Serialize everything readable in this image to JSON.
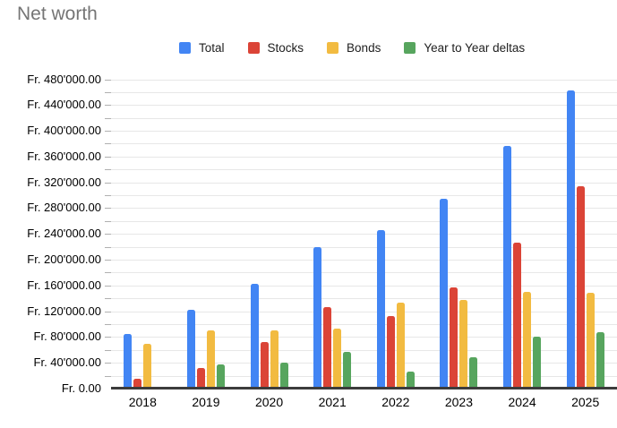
{
  "chart_data": {
    "type": "bar",
    "title": "Net worth",
    "categories": [
      "2018",
      "2019",
      "2020",
      "2021",
      "2022",
      "2023",
      "2024",
      "2025"
    ],
    "series": [
      {
        "name": "Total",
        "color": "#4285F4",
        "values": [
          85000,
          122000,
          162000,
          219000,
          246000,
          295000,
          376000,
          463000
        ]
      },
      {
        "name": "Stocks",
        "color": "#DB4437",
        "values": [
          15000,
          32000,
          72000,
          126000,
          112000,
          157000,
          226000,
          314000
        ]
      },
      {
        "name": "Bonds",
        "color": "#F2BB41",
        "values": [
          70000,
          90000,
          90000,
          93000,
          134000,
          138000,
          150000,
          149000
        ]
      },
      {
        "name": "Year to Year deltas",
        "color": "#57A55E",
        "values": [
          null,
          37000,
          40000,
          57000,
          27000,
          49000,
          81000,
          87000
        ]
      }
    ],
    "ylim": [
      0,
      480000
    ],
    "y_major_step": 40000,
    "y_minor_step": 20000,
    "y_tick_labels": [
      "Fr. 0.00",
      "Fr. 40'000.00",
      "Fr. 80'000.00",
      "Fr. 120'000.00",
      "Fr. 160'000.00",
      "Fr. 200'000.00",
      "Fr. 240'000.00",
      "Fr. 280'000.00",
      "Fr. 320'000.00",
      "Fr. 360'000.00",
      "Fr. 400'000.00",
      "Fr. 440'000.00",
      "Fr. 480'000.00"
    ],
    "currency_prefix": "Fr.",
    "grid": true,
    "legend_position": "top",
    "colors": {
      "title_text": "#757575",
      "axis_text": "#000000",
      "legend_text": "#212121",
      "gridline": "#e7e7e7",
      "baseline": "#3c3c3c",
      "background": "#ffffff"
    }
  }
}
